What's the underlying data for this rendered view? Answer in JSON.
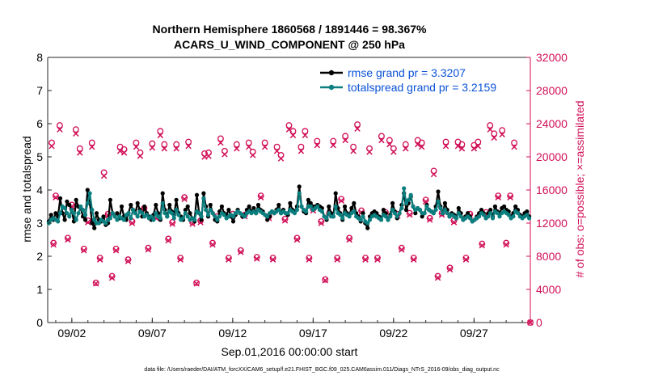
{
  "chart_data": {
    "type": "line",
    "title_line1": "Northern Hemisphere 1860568 / 1891446 = 98.367%",
    "title_line2": "ACARS_U_WIND_COMPONENT @ 250 hPa",
    "xlabel": "Sep.01,2016 00:00:00 start",
    "ylabel_left": "rmse and totalspread",
    "ylabel_right": "# of obs: o=possible; ×=assimilated",
    "footnote": "data file: /Users/raeder/DAI/ATM_forcXX/CAM6_setup/f.e21.FHIST_BGC.f09_025.CAM6assim.011/Diags_NTrS_2016-09/obs_diag_output.nc",
    "xlim": [
      0.5,
      30.5
    ],
    "ylim_left": [
      0,
      8
    ],
    "ylim_right": [
      0,
      32000
    ],
    "xticks": [
      {
        "x": 2,
        "label": "09/02"
      },
      {
        "x": 7,
        "label": "09/07"
      },
      {
        "x": 12,
        "label": "09/12"
      },
      {
        "x": 17,
        "label": "09/17"
      },
      {
        "x": 22,
        "label": "09/22"
      },
      {
        "x": 27,
        "label": "09/27"
      }
    ],
    "yticks_left": [
      "0",
      "1",
      "2",
      "3",
      "4",
      "5",
      "6",
      "7",
      "8"
    ],
    "yticks_right": [
      "0",
      "4000",
      "8000",
      "12000",
      "16000",
      "20000",
      "24000",
      "28000",
      "32000"
    ],
    "legend": [
      "rmse grand pr = 3.3207",
      "totalspread grand pr = 3.2159"
    ],
    "colors": {
      "rmse": "#000000",
      "spread": "#0b7f7f",
      "obs": "#d10f57",
      "legend_text": "#0a52d6"
    },
    "series": [
      {
        "name": "rmse",
        "values": [
          3.05,
          3.25,
          3.1,
          3.3,
          3.2,
          3.75,
          3.3,
          3.1,
          3.65,
          3.55,
          3.4,
          3.05,
          3.7,
          3.5,
          3.45,
          3.2,
          3.1,
          4.0,
          3.6,
          3.0,
          2.85,
          3.3,
          3.1,
          3.05,
          3.2,
          2.95,
          3.0,
          3.7,
          3.3,
          3.2,
          3.3,
          3.15,
          3.5,
          3.2,
          3.1,
          3.3,
          3.55,
          3.4,
          3.3,
          3.6,
          3.4,
          3.2,
          3.5,
          3.3,
          3.2,
          3.1,
          3.25,
          3.55,
          3.3,
          3.1,
          3.9,
          3.4,
          3.2,
          3.55,
          3.35,
          3.25,
          3.7,
          3.3,
          3.2,
          3.1,
          3.4,
          3.5,
          3.3,
          3.15,
          3.05,
          3.85,
          3.3,
          3.1,
          3.9,
          3.5,
          3.2,
          3.55,
          3.3,
          3.1,
          3.05,
          3.35,
          3.5,
          3.3,
          3.25,
          3.4,
          3.2,
          3.05,
          3.25,
          3.4,
          3.3,
          3.2,
          3.25,
          3.4,
          3.5,
          3.35,
          3.45,
          3.3,
          3.55,
          3.4,
          3.35,
          3.25,
          3.1,
          3.2,
          3.35,
          3.3,
          3.4,
          3.55,
          3.3,
          3.4,
          3.3,
          3.25,
          3.6,
          3.4,
          3.35,
          3.5,
          4.1,
          3.5,
          3.35,
          3.3,
          3.7,
          3.6,
          3.5,
          3.5,
          3.55,
          3.5,
          3.45,
          3.2,
          3.1,
          3.5,
          3.3,
          3.2,
          3.9,
          3.45,
          3.3,
          3.1,
          3.5,
          3.3,
          3.25,
          3.45,
          3.6,
          3.3,
          3.2,
          3.05,
          3.3,
          3.0,
          2.85,
          3.2,
          3.3,
          3.35,
          3.3,
          3.2,
          3.1,
          3.4,
          3.3,
          3.1,
          3.25,
          3.6,
          3.35,
          3.15,
          3.3,
          3.55,
          3.9,
          3.4,
          3.6,
          3.8,
          3.5,
          3.3,
          3.45,
          3.4,
          3.2,
          3.3,
          3.55,
          3.4,
          3.35,
          3.3,
          3.5,
          3.95,
          3.5,
          3.3,
          3.6,
          3.4,
          3.2,
          3.3,
          3.25,
          3.15,
          3.45,
          3.3,
          3.1,
          3.2,
          3.3,
          3.2,
          3.05,
          3.1,
          3.2,
          3.3,
          3.4,
          3.3,
          3.15,
          3.3,
          3.4,
          3.2,
          3.5,
          3.35,
          3.3,
          3.45,
          3.5,
          3.4,
          3.35,
          3.2,
          3.3,
          3.5,
          3.4,
          3.25,
          3.2,
          3.3,
          3.35,
          3.2
        ]
      },
      {
        "name": "totalspread",
        "values": [
          3.0,
          3.1,
          3.15,
          3.1,
          3.05,
          3.3,
          3.5,
          3.45,
          3.3,
          3.2,
          3.4,
          3.3,
          3.1,
          3.3,
          3.5,
          3.4,
          3.25,
          3.6,
          3.9,
          3.4,
          3.1,
          3.0,
          3.0,
          3.1,
          3.05,
          3.0,
          3.1,
          3.15,
          3.3,
          3.2,
          3.1,
          3.2,
          3.15,
          3.1,
          3.25,
          3.3,
          3.15,
          3.4,
          3.3,
          3.2,
          3.35,
          3.3,
          3.2,
          3.25,
          3.15,
          3.2,
          3.1,
          3.3,
          3.2,
          3.15,
          3.6,
          3.3,
          3.2,
          3.35,
          3.3,
          3.15,
          3.4,
          3.25,
          3.1,
          3.15,
          3.3,
          3.2,
          3.1,
          3.15,
          3.1,
          3.35,
          3.3,
          3.2,
          3.75,
          3.4,
          3.25,
          3.4,
          3.3,
          3.2,
          3.1,
          3.2,
          3.3,
          3.25,
          3.15,
          3.2,
          3.25,
          3.2,
          3.3,
          3.35,
          3.3,
          3.25,
          3.2,
          3.3,
          3.35,
          3.3,
          3.35,
          3.3,
          3.4,
          3.35,
          3.3,
          3.25,
          3.2,
          3.3,
          3.35,
          3.3,
          3.35,
          3.4,
          3.3,
          3.35,
          3.3,
          3.3,
          3.4,
          3.35,
          3.3,
          3.4,
          3.9,
          3.5,
          3.4,
          3.35,
          3.5,
          3.5,
          3.4,
          3.45,
          3.5,
          3.4,
          3.35,
          3.2,
          3.15,
          3.3,
          3.2,
          3.2,
          3.5,
          3.3,
          3.25,
          3.15,
          3.3,
          3.25,
          3.2,
          3.3,
          3.35,
          3.2,
          3.15,
          3.1,
          3.2,
          3.05,
          3.0,
          3.1,
          3.2,
          3.25,
          3.2,
          3.15,
          3.1,
          3.25,
          3.2,
          3.1,
          3.2,
          3.4,
          3.3,
          3.2,
          3.3,
          3.45,
          4.05,
          3.6,
          3.7,
          3.85,
          3.5,
          3.4,
          3.45,
          3.4,
          3.3,
          3.3,
          3.5,
          3.4,
          3.35,
          3.3,
          3.4,
          3.65,
          3.45,
          3.3,
          3.4,
          3.3,
          3.2,
          3.25,
          3.2,
          3.15,
          3.3,
          3.2,
          3.1,
          3.15,
          3.2,
          3.15,
          3.05,
          3.1,
          3.15,
          3.2,
          3.3,
          3.25,
          3.15,
          3.2,
          3.3,
          3.15,
          3.35,
          3.3,
          3.2,
          3.3,
          3.35,
          3.3,
          3.25,
          3.15,
          3.2,
          3.35,
          3.3,
          3.2,
          3.15,
          3.2,
          3.25,
          3.15
        ]
      }
    ],
    "obs_counts": [
      {
        "x": 0.75,
        "possible": 21700,
        "assimilated": 21300
      },
      {
        "x": 0.86,
        "possible": 9600,
        "assimilated": 9400
      },
      {
        "x": 1.0,
        "possible": 15300,
        "assimilated": 15100
      },
      {
        "x": 1.25,
        "possible": 23800,
        "assimilated": 23300
      },
      {
        "x": 1.75,
        "possible": 10200,
        "assimilated": 10000
      },
      {
        "x": 2.0,
        "possible": 14200,
        "assimilated": 14000
      },
      {
        "x": 2.25,
        "possible": 23300,
        "assimilated": 22800
      },
      {
        "x": 2.5,
        "possible": 21000,
        "assimilated": 20500
      },
      {
        "x": 2.75,
        "possible": 8900,
        "assimilated": 8700
      },
      {
        "x": 3.0,
        "possible": 12300,
        "assimilated": 12100
      },
      {
        "x": 3.25,
        "possible": 21700,
        "assimilated": 21200
      },
      {
        "x": 3.5,
        "possible": 4800,
        "assimilated": 4700
      },
      {
        "x": 3.75,
        "possible": 7800,
        "assimilated": 7600
      },
      {
        "x": 4.0,
        "possible": 18100,
        "assimilated": 17700
      },
      {
        "x": 4.25,
        "possible": 13100,
        "assimilated": 12900
      },
      {
        "x": 4.5,
        "possible": 5600,
        "assimilated": 5400
      },
      {
        "x": 4.75,
        "possible": 8900,
        "assimilated": 8700
      },
      {
        "x": 5.0,
        "possible": 21200,
        "assimilated": 20700
      },
      {
        "x": 5.25,
        "possible": 20900,
        "assimilated": 20500
      },
      {
        "x": 5.5,
        "possible": 7600,
        "assimilated": 7400
      },
      {
        "x": 5.75,
        "possible": 12200,
        "assimilated": 12000
      },
      {
        "x": 6.0,
        "possible": 21700,
        "assimilated": 21200
      },
      {
        "x": 6.25,
        "possible": 20500,
        "assimilated": 20100
      },
      {
        "x": 6.5,
        "possible": 13800,
        "assimilated": 13600
      },
      {
        "x": 6.75,
        "possible": 9000,
        "assimilated": 8800
      },
      {
        "x": 7.0,
        "possible": 21600,
        "assimilated": 21100
      },
      {
        "x": 7.25,
        "possible": 12800,
        "assimilated": 12600
      },
      {
        "x": 7.5,
        "possible": 23100,
        "assimilated": 22600
      },
      {
        "x": 7.75,
        "possible": 21500,
        "assimilated": 21000
      },
      {
        "x": 8.0,
        "possible": 10100,
        "assimilated": 9900
      },
      {
        "x": 8.25,
        "possible": 12100,
        "assimilated": 11900
      },
      {
        "x": 8.5,
        "possible": 21500,
        "assimilated": 21000
      },
      {
        "x": 8.75,
        "possible": 7800,
        "assimilated": 7600
      },
      {
        "x": 9.0,
        "possible": 15100,
        "assimilated": 14900
      },
      {
        "x": 9.25,
        "possible": 21800,
        "assimilated": 21300
      },
      {
        "x": 9.5,
        "possible": 12100,
        "assimilated": 11900
      },
      {
        "x": 9.75,
        "possible": 4800,
        "assimilated": 4700
      },
      {
        "x": 10.0,
        "possible": 12300,
        "assimilated": 12100
      },
      {
        "x": 10.25,
        "possible": 20400,
        "assimilated": 20000
      },
      {
        "x": 10.5,
        "possible": 20500,
        "assimilated": 20100
      },
      {
        "x": 10.75,
        "possible": 9600,
        "assimilated": 9400
      },
      {
        "x": 11.0,
        "possible": 12800,
        "assimilated": 12600
      },
      {
        "x": 11.25,
        "possible": 22200,
        "assimilated": 21700
      },
      {
        "x": 11.5,
        "possible": 20700,
        "assimilated": 20300
      },
      {
        "x": 11.75,
        "possible": 7800,
        "assimilated": 7600
      },
      {
        "x": 12.0,
        "possible": 13100,
        "assimilated": 12900
      },
      {
        "x": 12.25,
        "possible": 21500,
        "assimilated": 21000
      },
      {
        "x": 12.5,
        "possible": 8700,
        "assimilated": 8500
      },
      {
        "x": 12.75,
        "possible": 13000,
        "assimilated": 12800
      },
      {
        "x": 13.0,
        "possible": 21700,
        "assimilated": 21200
      },
      {
        "x": 13.25,
        "possible": 20600,
        "assimilated": 20200
      },
      {
        "x": 13.5,
        "possible": 7900,
        "assimilated": 7700
      },
      {
        "x": 13.75,
        "possible": 15300,
        "assimilated": 15100
      },
      {
        "x": 14.0,
        "possible": 21700,
        "assimilated": 21200
      },
      {
        "x": 14.25,
        "possible": 12800,
        "assimilated": 12600
      },
      {
        "x": 14.5,
        "possible": 7800,
        "assimilated": 7600
      },
      {
        "x": 14.75,
        "possible": 21200,
        "assimilated": 20700
      },
      {
        "x": 15.0,
        "possible": 20200,
        "assimilated": 19800
      },
      {
        "x": 15.25,
        "possible": 12500,
        "assimilated": 12300
      },
      {
        "x": 15.5,
        "possible": 23800,
        "assimilated": 23300
      },
      {
        "x": 15.75,
        "possible": 23100,
        "assimilated": 22600
      },
      {
        "x": 16.0,
        "possible": 10200,
        "assimilated": 10000
      },
      {
        "x": 16.25,
        "possible": 21200,
        "assimilated": 20700
      },
      {
        "x": 16.5,
        "possible": 23100,
        "assimilated": 22600
      },
      {
        "x": 16.75,
        "possible": 7800,
        "assimilated": 7600
      },
      {
        "x": 17.0,
        "possible": 13700,
        "assimilated": 13500
      },
      {
        "x": 17.25,
        "possible": 21900,
        "assimilated": 21400
      },
      {
        "x": 17.5,
        "possible": 12200,
        "assimilated": 12000
      },
      {
        "x": 17.75,
        "possible": 5200,
        "assimilated": 5100
      },
      {
        "x": 18.0,
        "possible": 13200,
        "assimilated": 13000
      },
      {
        "x": 18.25,
        "possible": 21900,
        "assimilated": 21400
      },
      {
        "x": 18.5,
        "possible": 7800,
        "assimilated": 7600
      },
      {
        "x": 18.75,
        "possible": 14900,
        "assimilated": 14700
      },
      {
        "x": 19.0,
        "possible": 22500,
        "assimilated": 22000
      },
      {
        "x": 19.25,
        "possible": 10200,
        "assimilated": 10000
      },
      {
        "x": 19.5,
        "possible": 21200,
        "assimilated": 20700
      },
      {
        "x": 19.75,
        "possible": 23900,
        "assimilated": 23400
      },
      {
        "x": 20.0,
        "possible": 13500,
        "assimilated": 13300
      },
      {
        "x": 20.25,
        "possible": 7800,
        "assimilated": 7600
      },
      {
        "x": 20.5,
        "possible": 21000,
        "assimilated": 20600
      },
      {
        "x": 20.75,
        "possible": 13100,
        "assimilated": 12900
      },
      {
        "x": 21.0,
        "possible": 7800,
        "assimilated": 7600
      },
      {
        "x": 21.25,
        "possible": 22500,
        "assimilated": 22000
      },
      {
        "x": 21.5,
        "possible": 13300,
        "assimilated": 13100
      },
      {
        "x": 21.75,
        "possible": 22000,
        "assimilated": 21500
      },
      {
        "x": 22.0,
        "possible": 21000,
        "assimilated": 20600
      },
      {
        "x": 22.25,
        "possible": 13100,
        "assimilated": 12900
      },
      {
        "x": 22.5,
        "possible": 9000,
        "assimilated": 8800
      },
      {
        "x": 22.75,
        "possible": 21500,
        "assimilated": 21000
      },
      {
        "x": 23.0,
        "possible": 13200,
        "assimilated": 13000
      },
      {
        "x": 23.25,
        "possible": 7800,
        "assimilated": 7600
      },
      {
        "x": 23.5,
        "possible": 22000,
        "assimilated": 21500
      },
      {
        "x": 23.75,
        "possible": 21700,
        "assimilated": 21200
      },
      {
        "x": 24.0,
        "possible": 14800,
        "assimilated": 14600
      },
      {
        "x": 24.25,
        "possible": 12600,
        "assimilated": 12400
      },
      {
        "x": 24.5,
        "possible": 18300,
        "assimilated": 17900
      },
      {
        "x": 24.75,
        "possible": 5600,
        "assimilated": 5400
      },
      {
        "x": 25.0,
        "possible": 13200,
        "assimilated": 13000
      },
      {
        "x": 25.25,
        "possible": 21800,
        "assimilated": 21300
      },
      {
        "x": 25.5,
        "possible": 6600,
        "assimilated": 6400
      },
      {
        "x": 25.75,
        "possible": 12300,
        "assimilated": 12100
      },
      {
        "x": 26.0,
        "possible": 21800,
        "assimilated": 21300
      },
      {
        "x": 26.25,
        "possible": 21500,
        "assimilated": 21000
      },
      {
        "x": 26.5,
        "possible": 7800,
        "assimilated": 7600
      },
      {
        "x": 26.75,
        "possible": 13100,
        "assimilated": 12900
      },
      {
        "x": 27.0,
        "possible": 21400,
        "assimilated": 21000
      },
      {
        "x": 27.25,
        "possible": 21800,
        "assimilated": 21300
      },
      {
        "x": 27.5,
        "possible": 9500,
        "assimilated": 9300
      },
      {
        "x": 27.75,
        "possible": 13300,
        "assimilated": 13100
      },
      {
        "x": 28.0,
        "possible": 23800,
        "assimilated": 23300
      },
      {
        "x": 28.25,
        "possible": 22800,
        "assimilated": 22300
      },
      {
        "x": 28.5,
        "possible": 15300,
        "assimilated": 15100
      },
      {
        "x": 28.75,
        "possible": 23200,
        "assimilated": 22700
      },
      {
        "x": 29.0,
        "possible": 9600,
        "assimilated": 9400
      },
      {
        "x": 29.25,
        "possible": 15300,
        "assimilated": 15100
      },
      {
        "x": 29.5,
        "possible": 21700,
        "assimilated": 21200
      },
      {
        "x": 30.5,
        "possible": 0,
        "assimilated": 0
      }
    ]
  }
}
